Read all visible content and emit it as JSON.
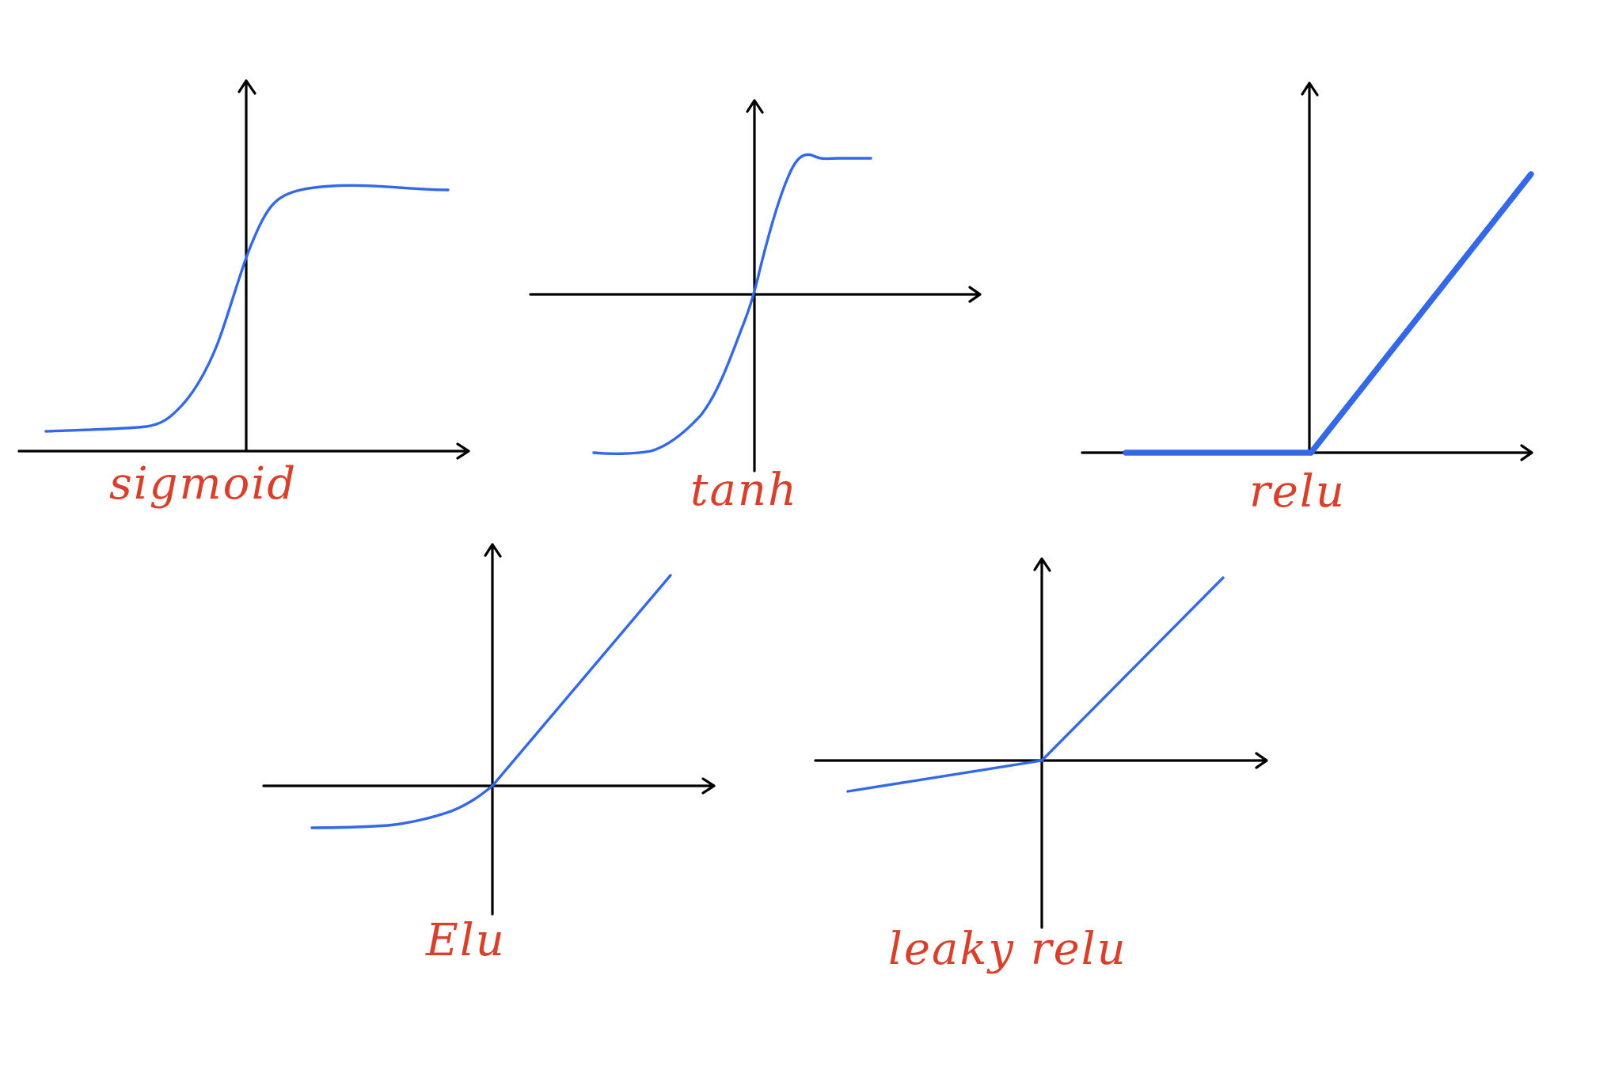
{
  "colors": {
    "axis": "#000000",
    "curve": "#3369e8",
    "label": "#d9402b",
    "background": "#ffffff"
  },
  "panels": [
    {
      "id": "sigmoid",
      "label": "sigmoid"
    },
    {
      "id": "tanh",
      "label": "tanh"
    },
    {
      "id": "relu",
      "label": "relu"
    },
    {
      "id": "elu",
      "label": "Elu"
    },
    {
      "id": "leaky-relu",
      "label": "leaky relu"
    }
  ]
}
